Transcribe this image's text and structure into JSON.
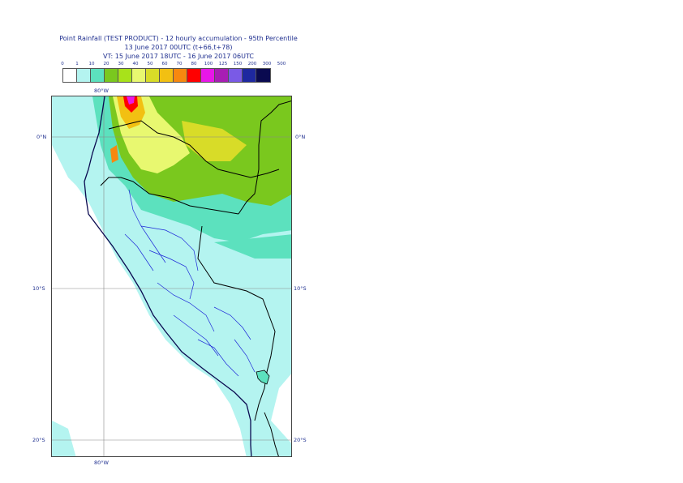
{
  "title": {
    "line1": "Point Rainfall (TEST PRODUCT) - 12 hourly accumulation - 95th Percentile",
    "line2": "13 June 2017 00UTC (t+66,t+78)",
    "line3": "VT: 15 June 2017 18UTC - 16 June 2017 06UTC"
  },
  "legend": {
    "labels": [
      "0",
      "1",
      "10",
      "20",
      "30",
      "40",
      "50",
      "60",
      "70",
      "80",
      "100",
      "125",
      "150",
      "200",
      "300",
      "500"
    ],
    "colors": [
      "#ffffff",
      "#b4f4f0",
      "#5ce1be",
      "#7ac81e",
      "#a8e21a",
      "#e8f870",
      "#d8dc28",
      "#f2c012",
      "#f7880f",
      "#ff0000",
      "#e817e8",
      "#a81eb4",
      "#7a5ae6",
      "#1e28a0",
      "#0a0a50"
    ]
  },
  "map": {
    "lon_labels": {
      "top": "80°W",
      "bottom": "80°W"
    },
    "lat_labels": {
      "left": [
        "0°N",
        "10°S",
        "20°S"
      ],
      "right": [
        "0°N",
        "10°S",
        "20°S"
      ]
    }
  }
}
